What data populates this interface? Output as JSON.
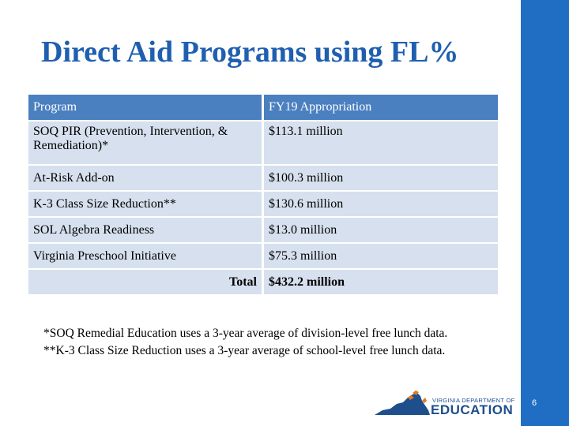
{
  "title": "Direct Aid Programs using FL%",
  "table": {
    "headers": [
      "Program",
      "FY19 Appropriation"
    ],
    "rows": [
      {
        "program": "SOQ PIR (Prevention, Intervention, & Remediation)*",
        "amount": "$113.1 million"
      },
      {
        "program": "At-Risk Add-on",
        "amount": "$100.3 million"
      },
      {
        "program": "K-3 Class Size Reduction**",
        "amount": "$130.6 million"
      },
      {
        "program": "SOL Algebra Readiness",
        "amount": "$13.0 million"
      },
      {
        "program": "Virginia Preschool Initiative",
        "amount": "$75.3 million"
      }
    ],
    "total_label": "Total",
    "total_value": "$432.2 million"
  },
  "footnotes": [
    "*SOQ Remedial Education uses a 3-year average of division-level free lunch data.",
    "**K-3 Class Size Reduction uses a 3-year average of school-level free lunch data."
  ],
  "logo": {
    "top_text": "VIRGINIA DEPARTMENT OF",
    "main_text": "EDUCATION"
  },
  "page_number": "6",
  "colors": {
    "title": "#1f5fb0",
    "header_bg": "#4a7fc0",
    "row_bg": "#d7e0ee",
    "side_bar": "#1f6ec4"
  }
}
